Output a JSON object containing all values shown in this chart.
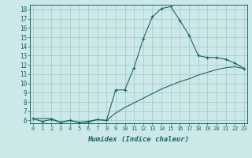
{
  "xlabel": "Humidex (Indice chaleur)",
  "ylabel": "",
  "bg_color": "#cce8e8",
  "grid_color": "#aacccc",
  "line_color": "#1a6666",
  "x_upper": [
    0,
    1,
    2,
    3,
    4,
    5,
    6,
    7,
    8,
    9,
    10,
    11,
    12,
    13,
    14,
    15,
    16,
    17,
    18,
    19,
    20,
    21,
    22,
    23
  ],
  "y_upper": [
    6.2,
    5.9,
    6.1,
    5.8,
    6.0,
    5.8,
    5.9,
    6.1,
    6.0,
    9.3,
    9.3,
    11.7,
    14.8,
    17.2,
    18.1,
    18.3,
    16.8,
    15.2,
    13.0,
    12.8,
    12.8,
    12.6,
    12.2,
    11.6
  ],
  "x_lower": [
    0,
    1,
    2,
    3,
    4,
    5,
    6,
    7,
    8,
    9,
    10,
    11,
    12,
    13,
    14,
    15,
    16,
    17,
    18,
    19,
    20,
    21,
    22,
    23
  ],
  "y_lower": [
    6.2,
    6.2,
    6.2,
    5.8,
    6.0,
    5.8,
    5.8,
    6.1,
    6.0,
    6.8,
    7.4,
    7.9,
    8.4,
    8.9,
    9.4,
    9.8,
    10.2,
    10.5,
    10.9,
    11.2,
    11.5,
    11.7,
    11.8,
    11.6
  ],
  "ylim_min": 6,
  "ylim_max": 18,
  "xlim_min": 0,
  "xlim_max": 23,
  "yticks": [
    6,
    7,
    8,
    9,
    10,
    11,
    12,
    13,
    14,
    15,
    16,
    17,
    18
  ],
  "xticks": [
    0,
    1,
    2,
    3,
    4,
    5,
    6,
    7,
    8,
    9,
    10,
    11,
    12,
    13,
    14,
    15,
    16,
    17,
    18,
    19,
    20,
    21,
    22,
    23
  ]
}
